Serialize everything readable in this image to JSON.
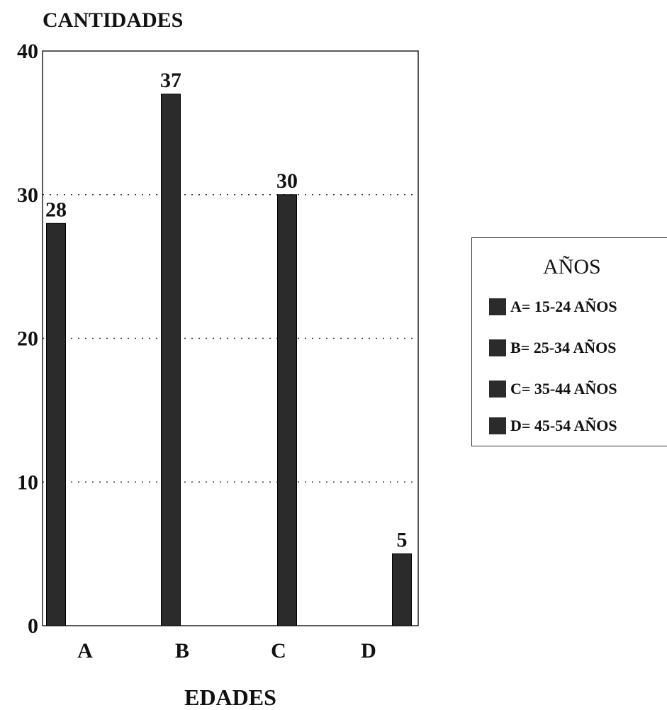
{
  "chart_data": {
    "type": "bar",
    "ylabel": "CANTIDADES",
    "xlabel": "EDADES",
    "categories": [
      "A",
      "B",
      "C",
      "D"
    ],
    "values": [
      28,
      37,
      30,
      5
    ],
    "ylim": [
      0,
      40
    ],
    "yticks": [
      0,
      10,
      20,
      30,
      40
    ],
    "grid": true,
    "bar_color": "#2b2b2b",
    "legend": {
      "title": "AÑOS",
      "placement": "right",
      "items": [
        "A= 15-24 AÑOS",
        "B= 25-34 AÑOS",
        "C= 35-44 AÑOS",
        "D= 45-54 AÑOS"
      ]
    }
  }
}
